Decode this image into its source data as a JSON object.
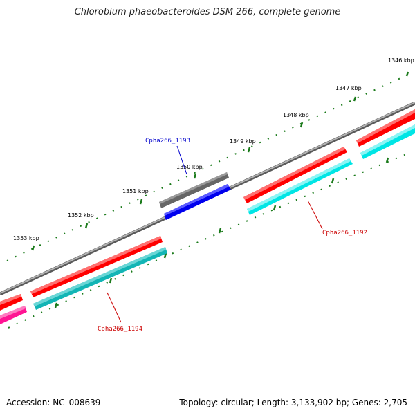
{
  "title": "Chlorobium phaeobacteroides DSM 266, complete genome",
  "footer": {
    "accession": "Accession: NC_008639",
    "summary": "Topology: circular; Length: 3,133,902 bp; Genes: 2,705"
  },
  "colors": {
    "backbone": "#888888",
    "tick": "#1a7a1a",
    "gene_forward": "#ff0000",
    "cds_forward": "#00e5e5",
    "gene_highlight": "#666666",
    "cds_highlight": "#0000ee",
    "cds_dark": "#12b5b5",
    "cds_magenta": "#ff1493",
    "label_red": "#cc0000",
    "label_blue": "#0000cc"
  },
  "scale_labels": [
    {
      "id": "1346",
      "text": "1346 kbp"
    },
    {
      "id": "1347",
      "text": "1347 kbp"
    },
    {
      "id": "1348",
      "text": "1348 kbp"
    },
    {
      "id": "1349",
      "text": "1349 kbp"
    },
    {
      "id": "1350",
      "text": "1350 kbp"
    },
    {
      "id": "1351",
      "text": "1351 kbp"
    },
    {
      "id": "1352",
      "text": "1352 kbp"
    },
    {
      "id": "1353",
      "text": "1353 kbp"
    }
  ],
  "gene_labels": {
    "cpha1192": "Cpha266_1192",
    "cpha1193": "Cpha266_1193",
    "cpha1194": "Cpha266_1194"
  }
}
